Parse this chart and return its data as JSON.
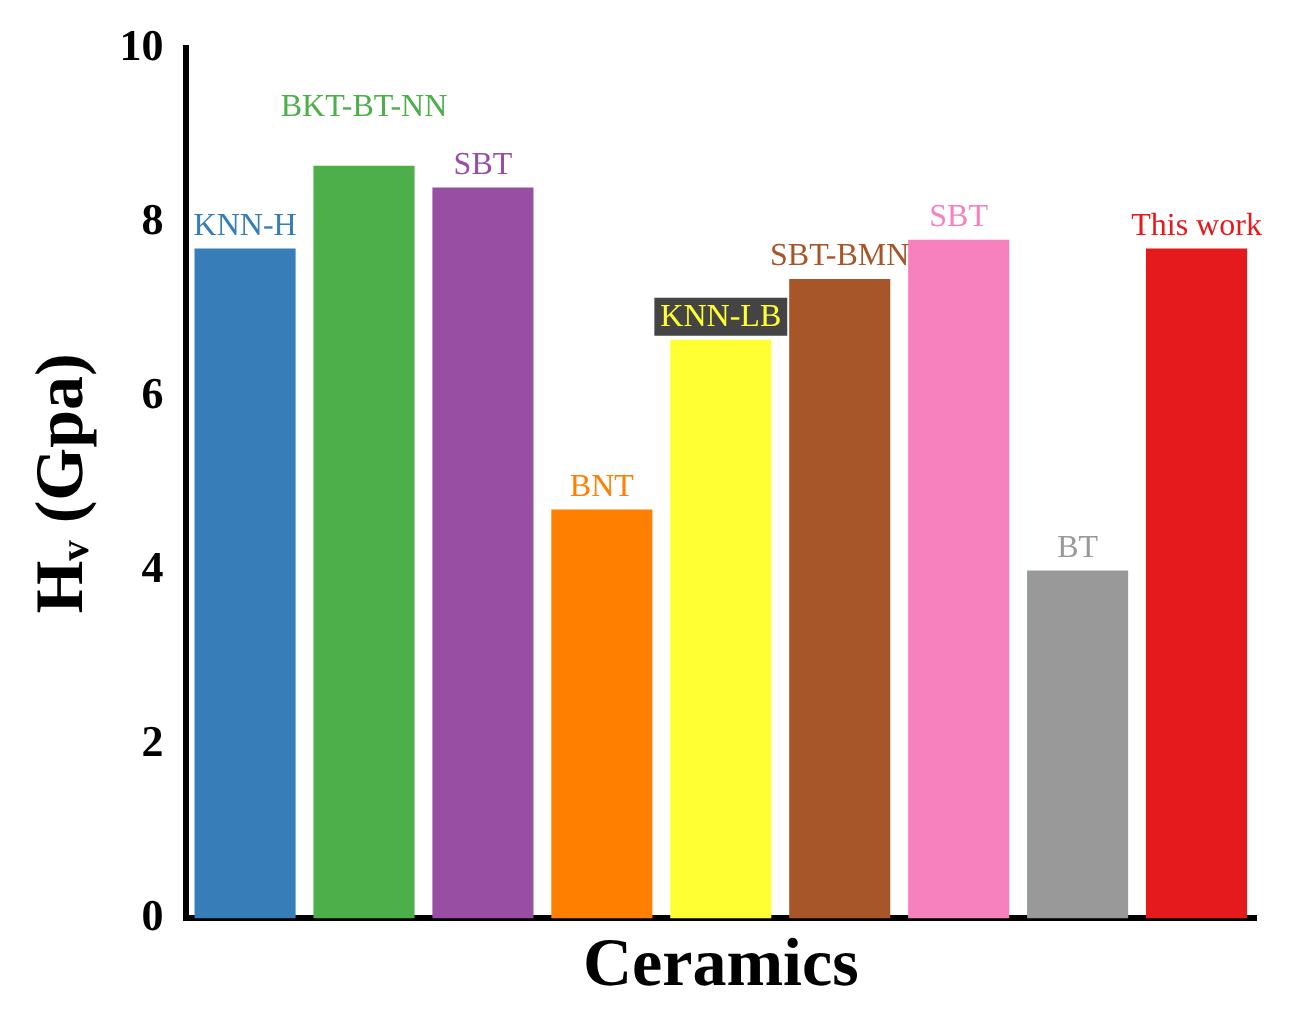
{
  "chart_data": {
    "type": "bar",
    "categories": [
      "KNN-H",
      "BKT-BT-NN",
      "SBT",
      "BNT",
      "KNN-LB",
      "SBT-BMN",
      "SBT",
      "BT",
      "This work"
    ],
    "values": [
      7.7,
      8.65,
      8.4,
      4.7,
      6.65,
      7.35,
      7.8,
      4.0,
      7.7
    ],
    "colors": [
      "#377eb8",
      "#4daf4a",
      "#984ea3",
      "#ff7f00",
      "#ffff33",
      "#a65628",
      "#f781bf",
      "#999999",
      "#e41a1c"
    ],
    "xlabel": "Ceramics",
    "ylabel": "Hᵥ (Gpa)",
    "ylim": [
      0,
      10
    ],
    "yticks": [
      0,
      2,
      4,
      6,
      8,
      10
    ],
    "grid": false,
    "legend": false,
    "tick_labels": "y"
  }
}
